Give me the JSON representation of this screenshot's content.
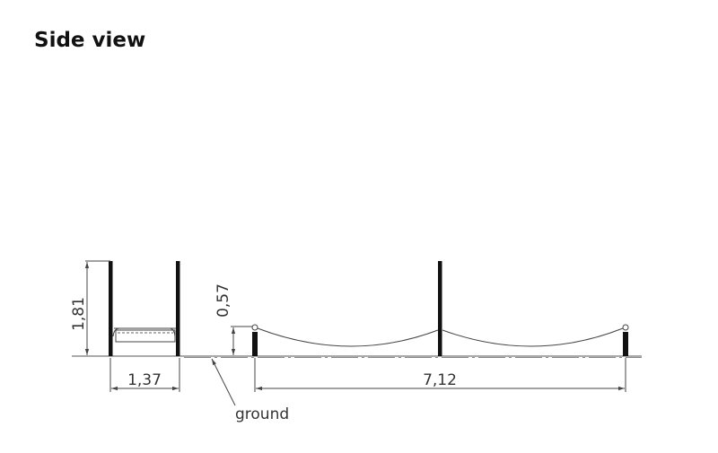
{
  "header": {
    "title": "Side view"
  },
  "dimensions": {
    "height_left": "1,81",
    "width_left": "1,37",
    "height_right": "0,57",
    "width_right": "7,12"
  },
  "labels": {
    "ground": "ground"
  }
}
